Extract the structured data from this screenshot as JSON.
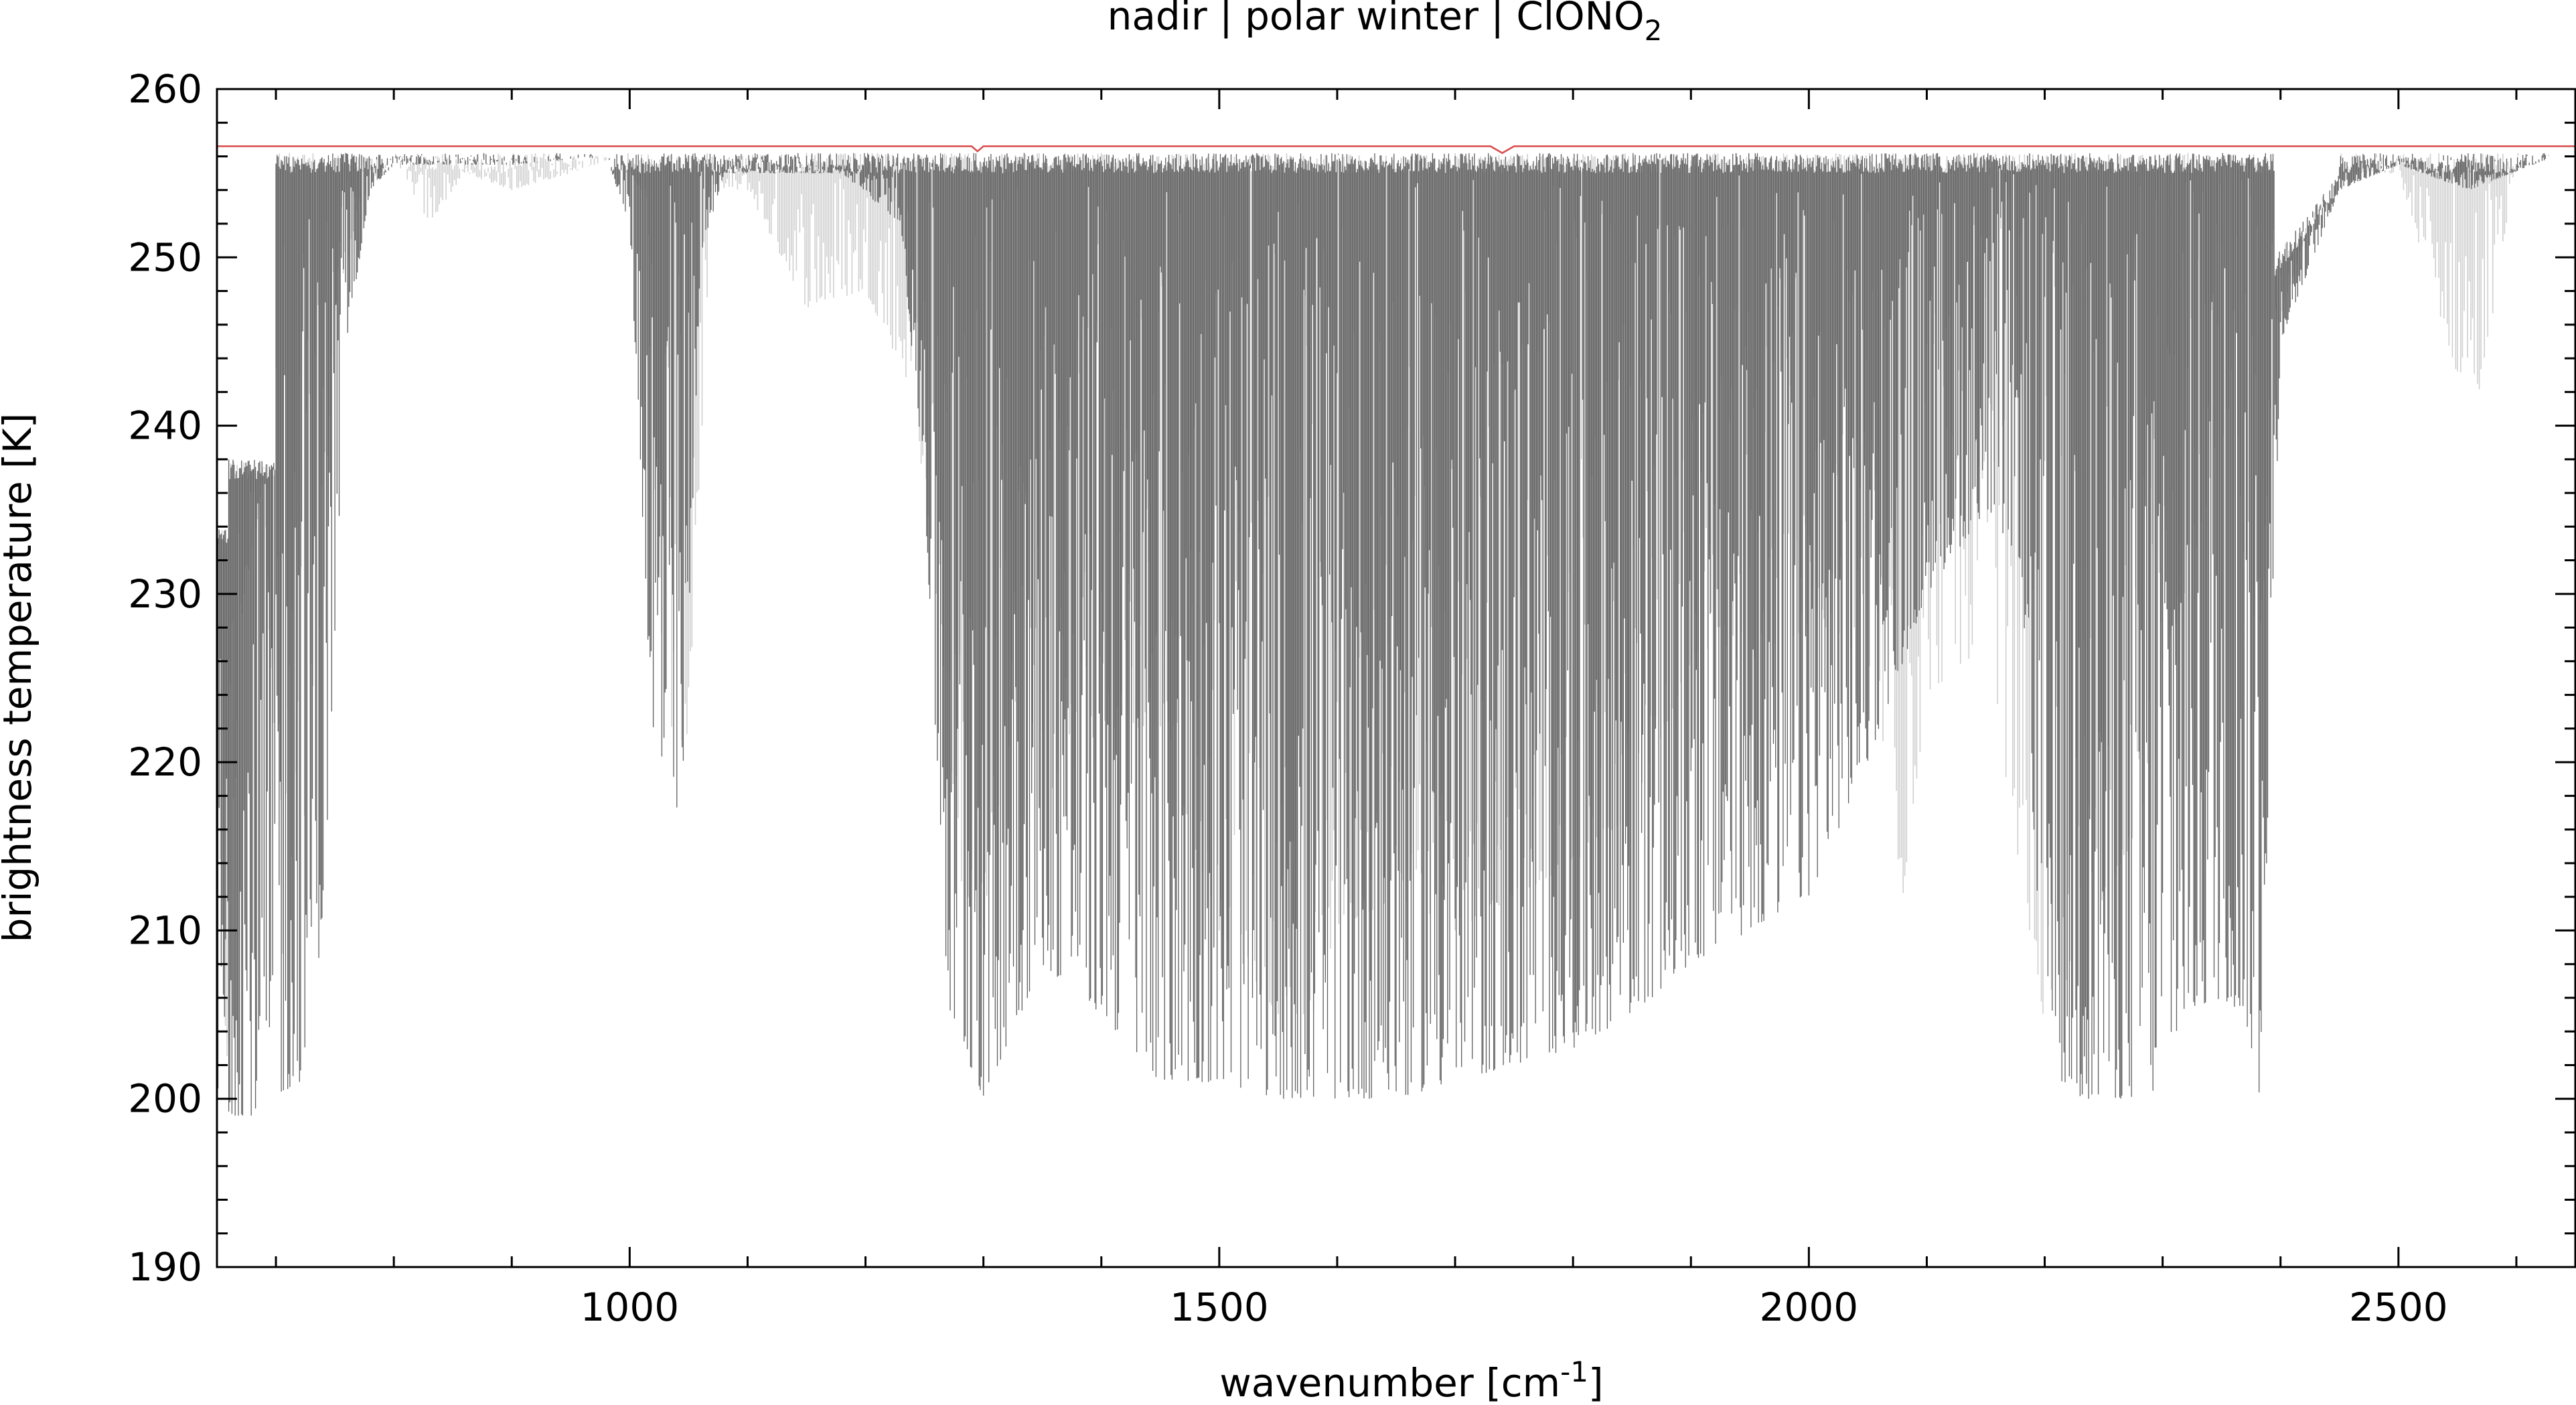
{
  "chart_data": {
    "type": "line",
    "title": "nadir | polar winter | ClONO",
    "title_subscript": "2",
    "xlabel": "wavenumber [cm",
    "xlabel_superscript": "-1",
    "xlabel_suffix": "]",
    "ylabel": "brightness temperature [K]",
    "xlim": [
      650,
      2650
    ],
    "ylim": [
      190,
      260
    ],
    "x_ticks": [
      {
        "value": 1000,
        "label": "1000"
      },
      {
        "value": 1500,
        "label": "1500"
      },
      {
        "value": 2000,
        "label": "2000"
      },
      {
        "value": 2500,
        "label": "2500"
      }
    ],
    "y_ticks": [
      {
        "value": 190,
        "label": "190"
      },
      {
        "value": 200,
        "label": "200"
      },
      {
        "value": 210,
        "label": "210"
      },
      {
        "value": 220,
        "label": "220"
      },
      {
        "value": 230,
        "label": "230"
      },
      {
        "value": 240,
        "label": "240"
      },
      {
        "value": 250,
        "label": "250"
      },
      {
        "value": 260,
        "label": "260"
      }
    ],
    "x_minor_step": 100,
    "y_minor_step": 2,
    "grid": false,
    "legend": "none",
    "series": [
      {
        "color": "#cfcfcf",
        "line_density": 1400,
        "envelope": [
          [
            650,
            200
          ],
          [
            660,
            202
          ],
          [
            670,
            228
          ],
          [
            690,
            237
          ],
          [
            705,
            205
          ],
          [
            720,
            211
          ],
          [
            735,
            225
          ],
          [
            750,
            246
          ],
          [
            770,
            253
          ],
          [
            800,
            256
          ],
          [
            830,
            252
          ],
          [
            860,
            255
          ],
          [
            900,
            254
          ],
          [
            950,
            255
          ],
          [
            990,
            256
          ],
          [
            1010,
            254
          ],
          [
            1030,
            222
          ],
          [
            1050,
            221
          ],
          [
            1070,
            254
          ],
          [
            1100,
            254
          ],
          [
            1150,
            247
          ],
          [
            1200,
            248
          ],
          [
            1240,
            242
          ],
          [
            1260,
            230
          ],
          [
            1280,
            213
          ],
          [
            1300,
            210
          ],
          [
            1330,
            225
          ],
          [
            1360,
            218
          ],
          [
            1400,
            222
          ],
          [
            1450,
            222
          ],
          [
            1500,
            210
          ],
          [
            1550,
            205
          ],
          [
            1580,
            205
          ],
          [
            1600,
            210
          ],
          [
            1650,
            212
          ],
          [
            1700,
            210
          ],
          [
            1750,
            212
          ],
          [
            1800,
            214
          ],
          [
            1850,
            217
          ],
          [
            1900,
            226
          ],
          [
            1950,
            226
          ],
          [
            2000,
            228
          ],
          [
            2050,
            226
          ],
          [
            2080,
            212
          ],
          [
            2100,
            224
          ],
          [
            2150,
            227
          ],
          [
            2200,
            204
          ],
          [
            2250,
            212
          ],
          [
            2280,
            216
          ],
          [
            2300,
            226
          ],
          [
            2320,
            230
          ],
          [
            2340,
            236
          ],
          [
            2360,
            240
          ],
          [
            2380,
            222
          ],
          [
            2395,
            245
          ],
          [
            2420,
            251
          ],
          [
            2450,
            255
          ],
          [
            2500,
            255
          ],
          [
            2550,
            243
          ],
          [
            2570,
            242
          ],
          [
            2600,
            256
          ],
          [
            2650,
            256
          ]
        ]
      },
      {
        "color": "#5f5f5f",
        "line_density": 2200,
        "envelope": [
          [
            650,
            199
          ],
          [
            680,
            199
          ],
          [
            700,
            200
          ],
          [
            720,
            201
          ],
          [
            740,
            210
          ],
          [
            760,
            245
          ],
          [
            780,
            254
          ],
          [
            800,
            255.5
          ],
          [
            900,
            255.5
          ],
          [
            980,
            256
          ],
          [
            1000,
            252
          ],
          [
            1020,
            220
          ],
          [
            1045,
            216
          ],
          [
            1060,
            250
          ],
          [
            1080,
            255
          ],
          [
            1180,
            255
          ],
          [
            1230,
            252
          ],
          [
            1250,
            236
          ],
          [
            1270,
            205
          ],
          [
            1300,
            200
          ],
          [
            1350,
            208
          ],
          [
            1400,
            205
          ],
          [
            1450,
            201
          ],
          [
            1500,
            201
          ],
          [
            1550,
            200
          ],
          [
            1600,
            200
          ],
          [
            1650,
            200
          ],
          [
            1700,
            201
          ],
          [
            1750,
            202
          ],
          [
            1800,
            203
          ],
          [
            1850,
            205
          ],
          [
            1900,
            208
          ],
          [
            1950,
            210
          ],
          [
            2000,
            212
          ],
          [
            2050,
            220
          ],
          [
            2100,
            230
          ],
          [
            2150,
            235
          ],
          [
            2180,
            232
          ],
          [
            2200,
            202
          ],
          [
            2230,
            200
          ],
          [
            2260,
            200
          ],
          [
            2290,
            200
          ],
          [
            2320,
            205
          ],
          [
            2350,
            206
          ],
          [
            2370,
            205
          ],
          [
            2382,
            200
          ],
          [
            2390,
            218
          ],
          [
            2400,
            245
          ],
          [
            2450,
            254
          ],
          [
            2500,
            255.5
          ],
          [
            2560,
            254
          ],
          [
            2650,
            256.5
          ]
        ]
      },
      {
        "color": "#d84a4a",
        "values": [
          [
            650,
            256.6
          ],
          [
            1290,
            256.6
          ],
          [
            1295,
            256.3
          ],
          [
            1300,
            256.6
          ],
          [
            1730,
            256.6
          ],
          [
            1740,
            256.2
          ],
          [
            1750,
            256.6
          ],
          [
            2650,
            256.6
          ]
        ]
      }
    ]
  }
}
